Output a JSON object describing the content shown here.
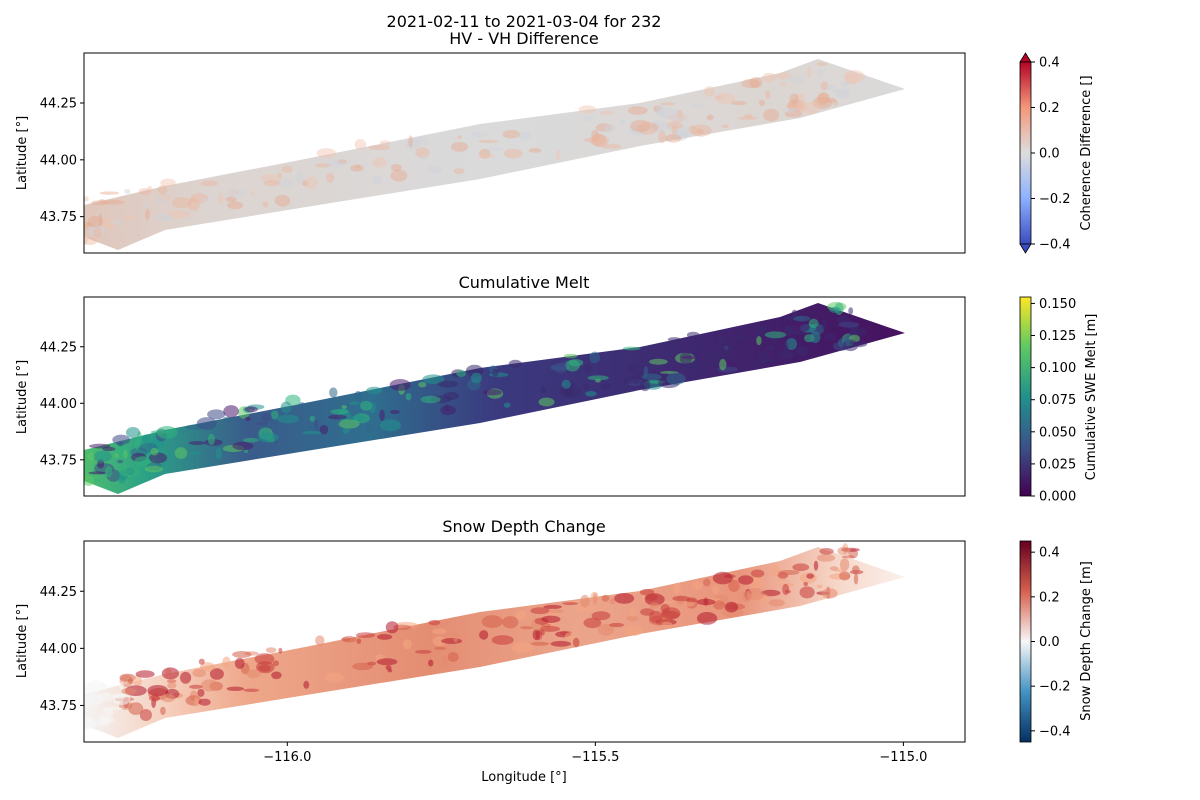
{
  "figure": {
    "title_line1": "2021-02-11 to 2021-03-04 for 232",
    "xlabel": "Longitude [°]"
  },
  "chart_data": [
    {
      "type": "heatmap",
      "title": "HV - VH Difference",
      "ylabel": "Latitude [°]",
      "xlim": [
        -116.33,
        -114.9
      ],
      "ylim": [
        43.59,
        44.47
      ],
      "yticks": [
        "43.75",
        "44.00",
        "44.25"
      ],
      "ytick_values": [
        43.75,
        44.0,
        44.25
      ],
      "colorbar": {
        "label": "Coherence Difference []",
        "cmap": "coolwarm",
        "range": [
          -0.4,
          0.4
        ],
        "ticks": [
          "0.4",
          "0.2",
          "0.0",
          "−0.2",
          "−0.4"
        ],
        "tick_values": [
          0.4,
          0.2,
          0.0,
          -0.2,
          -0.4
        ],
        "extend": "both",
        "colors": [
          "#3b4cc0",
          "#8db0fe",
          "#dddddd",
          "#f4987a",
          "#b40426"
        ]
      },
      "field": "near-zero everywhere with speckled slight positive values, strongest at west end",
      "grid": false
    },
    {
      "type": "heatmap",
      "title": "Cumulative Melt",
      "ylabel": "Latitude [°]",
      "xlim": [
        -116.33,
        -114.9
      ],
      "ylim": [
        43.59,
        44.47
      ],
      "yticks": [
        "43.75",
        "44.00",
        "44.25"
      ],
      "ytick_values": [
        43.75,
        44.0,
        44.25
      ],
      "colorbar": {
        "label": "Cumulative SWE Melt [m]",
        "cmap": "viridis",
        "range": [
          0.0,
          0.155
        ],
        "ticks": [
          "0.150",
          "0.125",
          "0.100",
          "0.075",
          "0.050",
          "0.025",
          "0.000"
        ],
        "tick_values": [
          0.15,
          0.125,
          0.1,
          0.075,
          0.05,
          0.025,
          0.0
        ],
        "extend": "neither",
        "colors": [
          "#440154",
          "#3b528b",
          "#21918c",
          "#5ec962",
          "#fde725"
        ]
      },
      "field": "highest melt (~0.10–0.12 m) at west end, decreasing to ~0.01 m toward east",
      "grid": false
    },
    {
      "type": "heatmap",
      "title": "Snow Depth Change",
      "ylabel": "Latitude [°]",
      "xlim": [
        -116.33,
        -114.9
      ],
      "ylim": [
        43.59,
        44.47
      ],
      "xticks": [
        "−116.0",
        "−115.5",
        "−115.0"
      ],
      "xtick_values": [
        -116.0,
        -115.5,
        -115.0
      ],
      "yticks": [
        "43.75",
        "44.00",
        "44.25"
      ],
      "ytick_values": [
        43.75,
        44.0,
        44.25
      ],
      "colorbar": {
        "label": "Snow Depth Change [m]",
        "cmap": "RdBu_r",
        "range": [
          -0.45,
          0.45
        ],
        "ticks": [
          "0.4",
          "0.2",
          "0.0",
          "−0.2",
          "−0.4"
        ],
        "tick_values": [
          0.4,
          0.2,
          0.0,
          -0.2,
          -0.4
        ],
        "extend": "neither",
        "colors": [
          "#053061",
          "#4393c3",
          "#f7f7f7",
          "#d6604d",
          "#67001f"
        ]
      },
      "field": "mostly positive (~0.1–0.3 m), peak ~0.4 m near -115.7, near zero at west and east ends",
      "grid": false
    }
  ]
}
